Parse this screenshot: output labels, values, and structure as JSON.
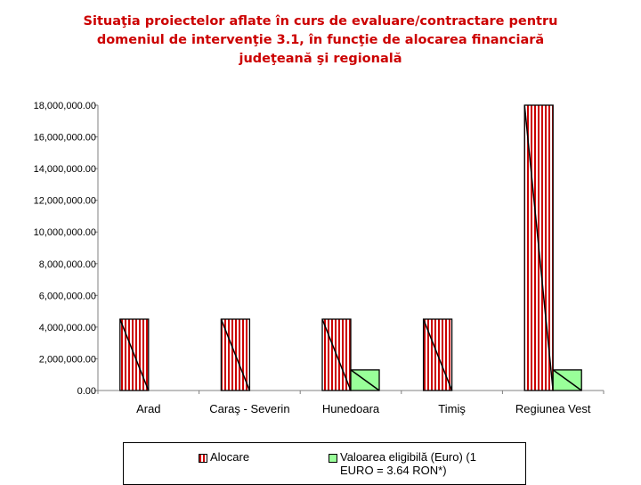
{
  "chart_data": {
    "type": "bar",
    "title": "Situaţia proiectelor aflate în curs de evaluare/contractare pentru domeniul de intervenţie 3.1, în funcţie de alocarea financiară judeţeană şi regională",
    "title_lines": [
      "Situaţia proiectelor aflate în curs de evaluare/contractare pentru",
      "domeniul de intervenţie 3.1, în funcţie de alocarea financiară",
      "judeţeană şi regională"
    ],
    "categories": [
      "Arad",
      "Caraş - Severin",
      "Hunedoara",
      "Timiş",
      "Regiunea Vest"
    ],
    "series": [
      {
        "name": "Alocare",
        "values": [
          4500000,
          4500000,
          4500000,
          4500000,
          18000000
        ],
        "color": "#cc0000"
      },
      {
        "name": "Valoarea eligibilă (Euro) (1 EURO = 3.64 RON*)",
        "values": [
          0,
          0,
          1300000,
          0,
          1300000
        ],
        "color": "#99ff99"
      }
    ],
    "ylim": [
      0,
      18000000
    ],
    "yticks": [
      "18,000,000.00",
      "16,000,000.00",
      "14,000,000.00",
      "12,000,000.00",
      "10,000,000.00",
      "8,000,000.00",
      "6,000,000.00",
      "4,000,000.00",
      "2,000,000.00",
      "0.00"
    ],
    "grid": false,
    "legend_position": "bottom"
  },
  "legend": {
    "items": [
      {
        "label": "Alocare",
        "color": "#cc0000"
      },
      {
        "label": "Valoarea eligibilă (Euro) (1 EURO = 3.64 RON*)",
        "color": "#99ff99"
      }
    ]
  }
}
